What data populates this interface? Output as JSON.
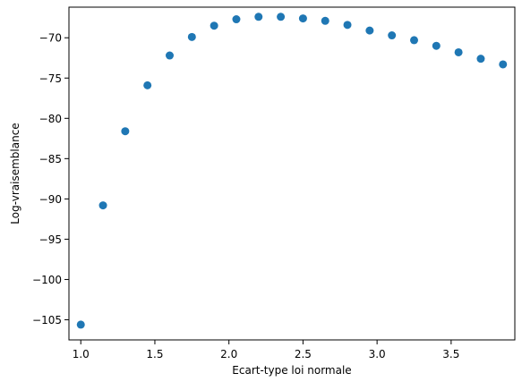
{
  "chart_data": {
    "type": "scatter",
    "title": "",
    "xlabel": "Ecart-type loi normale",
    "ylabel": "Log-vraisemblance",
    "xlim": [
      0.92,
      3.93
    ],
    "ylim": [
      -107.5,
      -66.2
    ],
    "x_ticks": [
      1.0,
      1.5,
      2.0,
      2.5,
      3.0,
      3.5
    ],
    "x_tick_labels": [
      "1.0",
      "1.5",
      "2.0",
      "2.5",
      "3.0",
      "3.5"
    ],
    "y_ticks": [
      -105,
      -100,
      -95,
      -90,
      -85,
      -80,
      -75,
      -70
    ],
    "y_tick_labels": [
      "−105",
      "−100",
      "−95",
      "−90",
      "−85",
      "−80",
      "−75",
      "−70"
    ],
    "grid": false,
    "color": "#1f77b4",
    "x": [
      1.0,
      1.15,
      1.3,
      1.45,
      1.6,
      1.75,
      1.9,
      2.05,
      2.2,
      2.35,
      2.5,
      2.65,
      2.8,
      2.95,
      3.1,
      3.25,
      3.4,
      3.55,
      3.7,
      3.85
    ],
    "y": [
      -105.6,
      -90.8,
      -81.6,
      -75.9,
      -72.2,
      -69.9,
      -68.5,
      -67.7,
      -67.4,
      -67.4,
      -67.6,
      -67.9,
      -68.4,
      -69.1,
      -69.7,
      -70.3,
      -71.0,
      -71.8,
      -72.6,
      -73.3
    ]
  }
}
